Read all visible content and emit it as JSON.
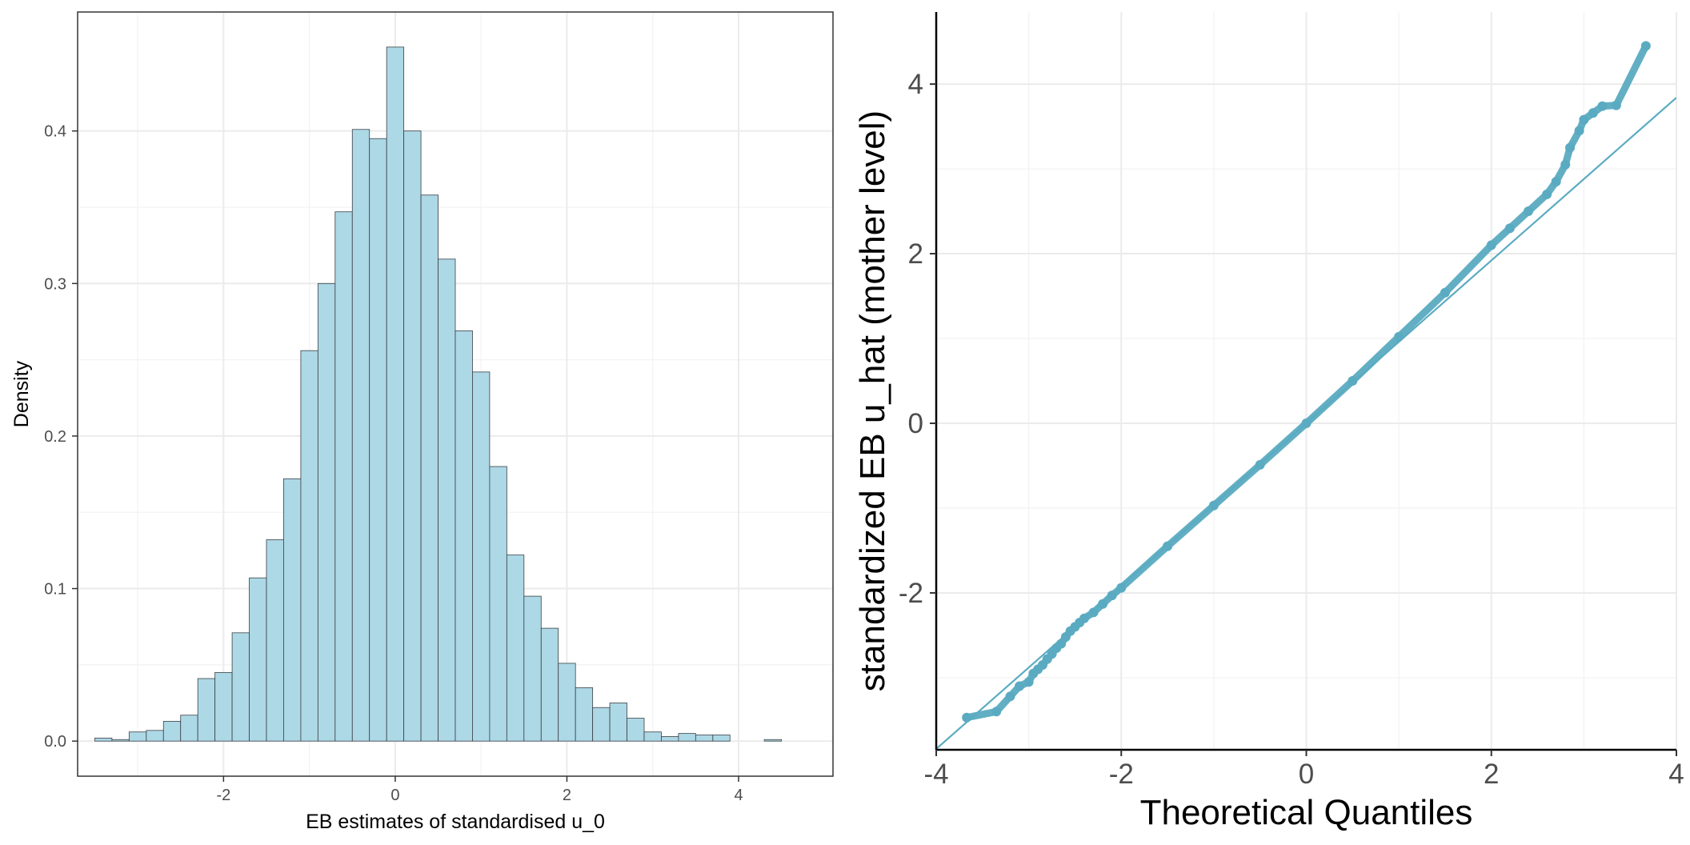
{
  "chart_data": [
    {
      "type": "bar",
      "subtype": "histogram",
      "xlabel": "EB estimates of standardised u_0",
      "ylabel": "Density",
      "xlim": [
        -3.7,
        5.1
      ],
      "ylim": [
        -0.023,
        0.478
      ],
      "x_ticks": [
        -2,
        0,
        2,
        4
      ],
      "x_tick_labels": [
        "-2",
        "0",
        "2",
        "4"
      ],
      "y_ticks": [
        0.0,
        0.1,
        0.2,
        0.3,
        0.4
      ],
      "y_tick_labels": [
        "0.0",
        "0.1",
        "0.2",
        "0.3",
        "0.4"
      ],
      "grid": true,
      "panel_border": true,
      "bin_width": 0.2,
      "bin_start": -3.5,
      "values": [
        0.002,
        0.001,
        0.006,
        0.007,
        0.013,
        0.017,
        0.041,
        0.045,
        0.071,
        0.107,
        0.132,
        0.172,
        0.256,
        0.3,
        0.347,
        0.401,
        0.395,
        0.455,
        0.4,
        0.358,
        0.316,
        0.269,
        0.242,
        0.18,
        0.122,
        0.095,
        0.074,
        0.051,
        0.035,
        0.022,
        0.025,
        0.015,
        0.006,
        0.003,
        0.005,
        0.004,
        0.004,
        0.0,
        0.0,
        0.001
      ],
      "colors": {
        "fill": "#add8e6",
        "stroke": "#3a3f44",
        "grid": "#ebebeb",
        "border": "#333333",
        "tick_text": "#4d4d4d"
      }
    },
    {
      "type": "scatter",
      "subtype": "qq-plot",
      "xlabel": "Theoretical Quantiles",
      "ylabel": "standardized EB u_hat (mother level)",
      "xlim": [
        -4,
        4
      ],
      "ylim": [
        -3.85,
        4.85
      ],
      "x_ticks": [
        -4,
        -2,
        0,
        2,
        4
      ],
      "x_tick_labels": [
        "-4",
        "-2",
        "0",
        "2",
        "4"
      ],
      "y_ticks": [
        -2,
        0,
        2,
        4
      ],
      "y_tick_labels": [
        "-2",
        "0",
        "2",
        "4"
      ],
      "grid": true,
      "reference_line": {
        "slope": 0.96,
        "intercept": 0.0
      },
      "points": [
        [
          -3.67,
          -3.47
        ],
        [
          -3.35,
          -3.4
        ],
        [
          -3.2,
          -3.22
        ],
        [
          -3.1,
          -3.1
        ],
        [
          -3.0,
          -3.05
        ],
        [
          -2.95,
          -2.95
        ],
        [
          -2.9,
          -2.9
        ],
        [
          -2.85,
          -2.85
        ],
        [
          -2.8,
          -2.78
        ],
        [
          -2.75,
          -2.72
        ],
        [
          -2.7,
          -2.65
        ],
        [
          -2.65,
          -2.6
        ],
        [
          -2.6,
          -2.52
        ],
        [
          -2.55,
          -2.45
        ],
        [
          -2.5,
          -2.4
        ],
        [
          -2.45,
          -2.35
        ],
        [
          -2.4,
          -2.3
        ],
        [
          -2.3,
          -2.23
        ],
        [
          -2.2,
          -2.13
        ],
        [
          -2.1,
          -2.03
        ],
        [
          -2.0,
          -1.94
        ],
        [
          -1.5,
          -1.45
        ],
        [
          -1.0,
          -0.97
        ],
        [
          -0.5,
          -0.49
        ],
        [
          0.0,
          0.0
        ],
        [
          0.5,
          0.5
        ],
        [
          1.0,
          1.02
        ],
        [
          1.5,
          1.54
        ],
        [
          2.0,
          2.1
        ],
        [
          2.2,
          2.3
        ],
        [
          2.4,
          2.5
        ],
        [
          2.6,
          2.7
        ],
        [
          2.7,
          2.85
        ],
        [
          2.8,
          3.05
        ],
        [
          2.85,
          3.25
        ],
        [
          2.95,
          3.45
        ],
        [
          3.0,
          3.58
        ],
        [
          3.1,
          3.66
        ],
        [
          3.2,
          3.74
        ],
        [
          3.35,
          3.75
        ],
        [
          3.67,
          4.45
        ]
      ],
      "colors": {
        "point": "#5aabc1",
        "line": "#5aabc1",
        "grid": "#ebebeb",
        "axis": "#000000",
        "tick_text": "#4d4d4d"
      }
    }
  ]
}
